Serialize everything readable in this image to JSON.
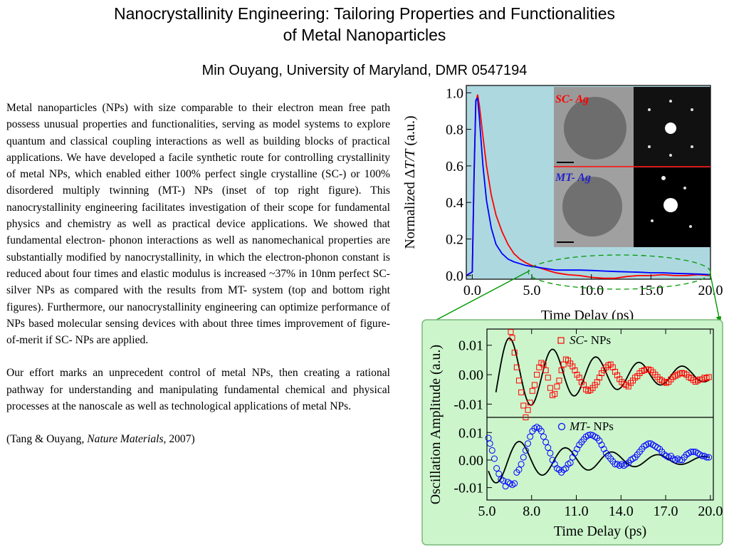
{
  "header": {
    "title_line1": "Nanocrystallinity Engineering: Tailoring Properties and Functionalities",
    "title_line2": "of Metal Nanoparticles",
    "author": "Min Ouyang, University of Maryland, DMR 0547194"
  },
  "body": {
    "paragraph1": "Metal nanoparticles (NPs) with size comparable to their electron mean free path possess unusual properties and functionalities, serving as model systems to explore quantum and classical coupling interactions as well as building blocks of practical applications. We have developed a facile synthetic route for controlling crystallinity of metal NPs, which enabled either 100% perfect single crystalline (SC-) or 100% disordered multiply twinning (MT-) NPs (inset of top right figure). This nanocrystallinity engineering facilitates investigation of their scope for fundamental physics and chemistry as well as practical device applications. We showed that fundamental electron- phonon interactions as well as nanomechanical properties are substantially modified by nanocrystallinity, in which the electron-phonon constant is reduced about four times and elastic modulus is increased ~37% in 10nm perfect SC- silver NPs as compared with the results from MT- system (top and bottom right figures). Furthermore, our nanocrystallinity engineering can optimize performance of NPs based molecular sensing devices with about three times improvement of figure-of-merit if SC- NPs are applied.",
    "paragraph2": "Our effort marks an unprecedent control of metal NPs, then creating a rational pathway for understanding and manipulating fundamental chemical and physical processes at the nanoscale as well as technological applications of metal NPs.",
    "citation_prefix": "(Tang & Ouyang, ",
    "citation_journal": "Nature Materials",
    "citation_suffix": ", 2007)"
  },
  "colors": {
    "top_plot_bg": "#add8e0",
    "bottom_panel_bg": "#ccf5cc",
    "sc_series": "#ff0000",
    "mt_series": "#0000ff",
    "fit_line": "#000000",
    "ellipse_connector": "#009900"
  },
  "chart_data": [
    {
      "type": "line",
      "title": "",
      "xlabel": "Time Delay (ps)",
      "ylabel_prefix": "Normalized Δ",
      "ylabel_italic": "T/T",
      "ylabel_suffix": " (a.u.)",
      "xlim": [
        -0.5,
        20
      ],
      "ylim": [
        -0.02,
        1.04
      ],
      "x_ticks": [
        0,
        5,
        10,
        15,
        20
      ],
      "x_tick_labels": [
        "0.0",
        "5.0",
        "10.0",
        "15.0",
        "20.0"
      ],
      "y_ticks": [
        0,
        0.2,
        0.4,
        0.6,
        0.8,
        1.0
      ],
      "y_tick_labels": [
        "0.0",
        "0.2",
        "0.4",
        "0.6",
        "0.8",
        "1.0"
      ],
      "series": [
        {
          "color": "#ff0000",
          "x": [
            -0.5,
            0.0,
            0.15,
            0.3,
            0.45,
            0.6,
            0.9,
            1.2,
            1.6,
            2.0,
            2.5,
            3.0,
            3.5,
            4.0,
            4.5,
            5.0,
            5.5,
            6.0,
            6.5,
            7.0,
            7.5,
            8.0,
            9.0,
            10.0,
            11.0,
            12.0,
            13.0,
            14.0,
            15.0,
            16.0,
            17.0,
            18.0,
            19.0,
            20.0
          ],
          "y": [
            0.0,
            0.02,
            0.55,
            0.95,
            0.99,
            0.93,
            0.76,
            0.6,
            0.44,
            0.33,
            0.24,
            0.17,
            0.12,
            0.09,
            0.07,
            0.055,
            0.045,
            0.035,
            0.025,
            0.015,
            0.01,
            0.005,
            0.0,
            -0.01,
            -0.015,
            -0.015,
            -0.005,
            0.0,
            0.0,
            0.005,
            0.0,
            0.0,
            0.005,
            0.0
          ]
        },
        {
          "color": "#0000ff",
          "x": [
            -0.5,
            0.0,
            0.15,
            0.3,
            0.45,
            0.6,
            0.9,
            1.2,
            1.6,
            2.0,
            2.5,
            3.0,
            3.5,
            4.0,
            4.5,
            5.0,
            5.5,
            6.0,
            6.5,
            7.0,
            8.0,
            9.0,
            10.0,
            11.0,
            12.0,
            13.0,
            14.0,
            15.0,
            16.0,
            17.0,
            18.0,
            19.0,
            20.0
          ],
          "y": [
            0.0,
            0.02,
            0.55,
            0.96,
            0.97,
            0.86,
            0.6,
            0.41,
            0.26,
            0.17,
            0.12,
            0.09,
            0.075,
            0.065,
            0.055,
            0.05,
            0.045,
            0.04,
            0.035,
            0.03,
            0.03,
            0.03,
            0.028,
            0.025,
            0.022,
            0.02,
            0.018,
            0.015,
            0.015,
            0.012,
            0.01,
            0.008,
            0.005
          ]
        }
      ],
      "inset_labels": {
        "sc_prefix": "SC",
        "sc_suffix": "- Ag",
        "mt_prefix": "MT",
        "mt_suffix": "- Ag"
      }
    },
    {
      "type": "scatter",
      "title": "",
      "xlabel": "Time Delay (ps)",
      "ylabel": "Oscillation Amplitude (a.u.)",
      "xlim": [
        5,
        20.2
      ],
      "x_ticks": [
        5,
        8,
        11,
        14,
        17,
        20
      ],
      "x_tick_labels": [
        "5.0",
        "8.0",
        "11.0",
        "14.0",
        "17.0",
        "20.0"
      ],
      "panels": [
        {
          "legend_italic": "SC",
          "legend_suffix": "- NPs",
          "ylim": [
            -0.0145,
            0.0155
          ],
          "y_ticks": [
            0.01,
            0.0,
            -0.01
          ],
          "y_tick_labels": [
            "0.01",
            "0.00",
            "-0.01"
          ],
          "marker": "square",
          "color": "#ff0000",
          "fit": {
            "A": 0.015,
            "tau": 8.0,
            "period": 2.9,
            "t0": 5.0,
            "phase_deg": 170
          },
          "points_x": [
            6.6,
            6.7,
            6.85,
            7.0,
            7.15,
            7.3,
            7.45,
            7.6,
            7.75,
            7.9,
            8.05,
            8.2,
            8.35,
            8.5,
            8.65,
            8.8,
            8.95,
            9.1,
            9.25,
            9.4,
            9.55,
            9.7,
            9.85,
            10.0,
            10.15,
            10.3,
            10.45,
            10.6,
            10.75,
            10.9,
            11.05,
            11.2,
            11.35,
            11.5,
            11.65,
            11.8,
            11.95,
            12.1,
            12.25,
            12.4,
            12.55,
            12.7,
            12.85,
            13.0,
            13.15,
            13.3,
            13.45,
            13.6,
            13.75,
            13.9,
            14.05,
            14.2,
            14.35,
            14.5,
            14.65,
            14.8,
            14.95,
            15.1,
            15.25,
            15.4,
            15.55,
            15.7,
            15.85,
            16.0,
            16.15,
            16.3,
            16.45,
            16.6,
            16.75,
            16.9,
            17.05,
            17.2,
            17.35,
            17.5,
            17.65,
            17.8,
            17.95,
            18.1,
            18.25,
            18.4,
            18.55,
            18.7,
            18.85,
            19.0,
            19.15,
            19.3,
            19.45,
            19.6,
            19.75,
            19.9
          ],
          "points_y": [
            0.0145,
            0.0125,
            0.0075,
            0.0025,
            -0.002,
            -0.006,
            -0.0105,
            -0.0145,
            -0.012,
            -0.0095,
            -0.0055,
            -0.0035,
            0.0,
            0.0025,
            0.004,
            0.0035,
            0.0015,
            -0.001,
            -0.0045,
            -0.007,
            -0.0065,
            -0.004,
            -0.002,
            0.0015,
            0.0035,
            0.0052,
            0.0048,
            0.0038,
            0.0028,
            0.0015,
            0.0,
            -0.001,
            -0.0025,
            -0.0035,
            -0.005,
            -0.0055,
            -0.0052,
            -0.0045,
            -0.0035,
            -0.0025,
            -0.001,
            0.0005,
            0.0015,
            0.0025,
            0.0032,
            0.0035,
            0.0025,
            0.001,
            -0.0002,
            -0.0015,
            -0.0025,
            -0.0032,
            -0.0035,
            -0.004,
            -0.0028,
            -0.002,
            -0.001,
            -0.0005,
            0.0005,
            0.0012,
            0.0015,
            0.0018,
            0.0018,
            0.0015,
            0.0008,
            0.0,
            -0.0008,
            -0.0016,
            -0.002,
            -0.0025,
            -0.0028,
            -0.0024,
            -0.0016,
            -0.0008,
            -0.0004,
            0.0,
            0.0004,
            0.0006,
            0.0004,
            0.0,
            -0.0008,
            -0.0012,
            -0.0018,
            -0.0024,
            -0.002,
            -0.0016,
            -0.0016,
            -0.001,
            -0.0012,
            -0.0008
          ]
        },
        {
          "legend_italic": "MT",
          "legend_suffix": "- NPs",
          "ylim": [
            -0.0145,
            0.0155
          ],
          "y_ticks": [
            0.01,
            0.0,
            -0.01
          ],
          "y_tick_labels": [
            "0.01",
            "0.00",
            "-0.01"
          ],
          "marker": "circle",
          "color": "#0000ff",
          "fit": {
            "A": 0.009,
            "tau": 7.5,
            "period": 3.1,
            "t0": 5.0,
            "phase_deg": 105
          },
          "points_x": [
            5.1,
            5.2,
            5.35,
            5.5,
            5.65,
            5.8,
            5.95,
            6.1,
            6.25,
            6.4,
            6.55,
            6.7,
            6.85,
            7.0,
            7.15,
            7.3,
            7.45,
            7.6,
            7.75,
            7.9,
            8.05,
            8.2,
            8.35,
            8.5,
            8.65,
            8.8,
            8.95,
            9.1,
            9.25,
            9.4,
            9.55,
            9.7,
            9.85,
            10.0,
            10.15,
            10.3,
            10.45,
            10.6,
            10.75,
            10.9,
            11.05,
            11.2,
            11.35,
            11.5,
            11.65,
            11.8,
            11.95,
            12.1,
            12.25,
            12.4,
            12.55,
            12.7,
            12.85,
            13.0,
            13.15,
            13.3,
            13.45,
            13.6,
            13.75,
            13.9,
            14.05,
            14.2,
            14.35,
            14.5,
            14.65,
            14.8,
            14.95,
            15.1,
            15.25,
            15.4,
            15.55,
            15.7,
            15.85,
            16.0,
            16.15,
            16.3,
            16.45,
            16.6,
            16.75,
            16.9,
            17.05,
            17.2,
            17.35,
            17.5,
            17.65,
            17.8,
            17.95,
            18.1,
            18.25,
            18.4,
            18.55,
            18.7,
            18.85,
            19.0,
            19.15,
            19.3,
            19.45,
            19.6,
            19.75,
            19.9
          ],
          "points_y": [
            0.008,
            0.006,
            0.0035,
            0.0005,
            -0.003,
            -0.005,
            -0.007,
            -0.0075,
            -0.0095,
            -0.008,
            -0.0085,
            -0.009,
            -0.0085,
            -0.0045,
            -0.0035,
            -0.0015,
            0.001,
            0.0035,
            0.006,
            0.0085,
            0.0105,
            0.0115,
            0.012,
            0.0115,
            0.0105,
            0.0085,
            0.0065,
            0.0045,
            0.0025,
            0.0,
            -0.0015,
            -0.003,
            -0.0035,
            -0.0045,
            -0.0035,
            -0.003,
            -0.0015,
            -0.001,
            0.001,
            0.0025,
            0.004,
            0.0055,
            0.0065,
            0.0075,
            0.0085,
            0.009,
            0.0092,
            0.009,
            0.0085,
            0.008,
            0.007,
            0.0055,
            0.004,
            0.0025,
            0.0015,
            0.0005,
            -0.0005,
            -0.0015,
            -0.0015,
            -0.002,
            -0.0015,
            -0.002,
            -0.0015,
            -0.001,
            0.0,
            0.0005,
            0.001,
            0.002,
            0.003,
            0.004,
            0.005,
            0.0055,
            0.006,
            0.006,
            0.0055,
            0.005,
            0.0045,
            0.004,
            0.003,
            0.002,
            0.0015,
            0.001,
            0.0015,
            0.0005,
            0.0,
            0.0005,
            0.0,
            0.0,
            0.001,
            0.002,
            0.0025,
            0.003,
            0.003,
            0.003,
            0.0025,
            0.002,
            0.0015,
            0.0015,
            0.001,
            0.001
          ]
        }
      ]
    }
  ]
}
